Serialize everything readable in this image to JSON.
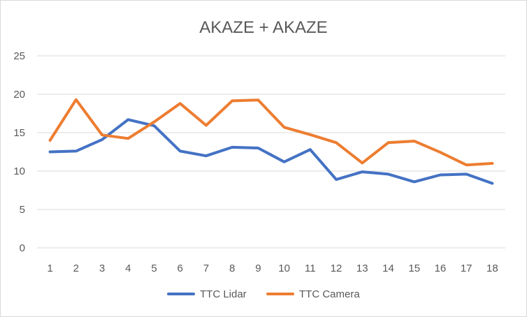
{
  "chart_data": {
    "type": "line",
    "title": "AKAZE + AKAZE",
    "xlabel": "",
    "ylabel": "",
    "categories": [
      "1",
      "2",
      "3",
      "4",
      "5",
      "6",
      "7",
      "8",
      "9",
      "10",
      "11",
      "12",
      "13",
      "14",
      "15",
      "16",
      "17",
      "18"
    ],
    "ylim": [
      0,
      25
    ],
    "yticks": [
      0,
      5,
      10,
      15,
      20,
      25
    ],
    "grid": true,
    "legend_position": "bottom",
    "series": [
      {
        "name": "TTC Lidar",
        "color": "#4472c4",
        "values": [
          12.5,
          12.6,
          14.1,
          16.7,
          15.9,
          12.6,
          11.98,
          13.1,
          13.0,
          11.2,
          12.8,
          8.9,
          9.9,
          9.6,
          8.6,
          9.5,
          9.6,
          8.4
        ]
      },
      {
        "name": "TTC Camera",
        "color": "#ed7d31",
        "values": [
          14.0,
          19.3,
          14.7,
          14.25,
          16.4,
          18.8,
          15.95,
          19.15,
          19.25,
          15.7,
          14.75,
          13.7,
          11.05,
          13.7,
          13.9,
          12.45,
          10.8,
          11.0
        ]
      }
    ]
  }
}
